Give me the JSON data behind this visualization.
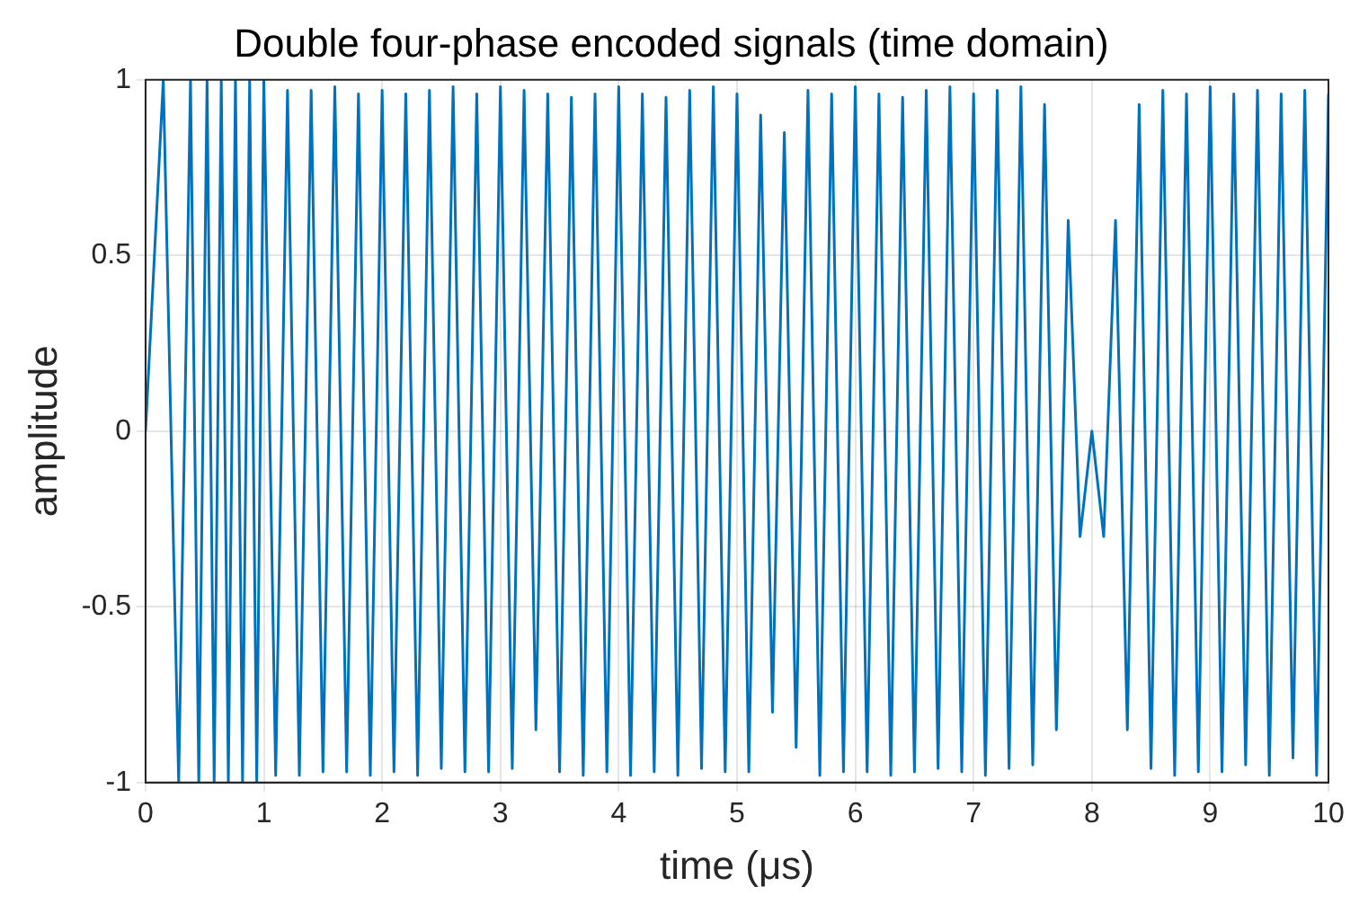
{
  "chart_data": {
    "type": "line",
    "title": "Double four-phase encoded signals (time domain)",
    "xlabel": "time (μs)",
    "ylabel": "amplitude",
    "xlim": [
      0,
      10
    ],
    "xticks": [
      0,
      1,
      2,
      3,
      4,
      5,
      6,
      7,
      8,
      9,
      10
    ],
    "ylim": [
      -1,
      1
    ],
    "yticks": [
      -1,
      -0.5,
      0,
      0.5,
      1
    ],
    "grid": true,
    "marker": "none",
    "line_style": "solid",
    "x": [
      0,
      0.15,
      0.28,
      0.38,
      0.45,
      0.52,
      0.58,
      0.64,
      0.7,
      0.76,
      0.82,
      0.88,
      0.94,
      1.0,
      1.1,
      1.2,
      1.3,
      1.4,
      1.5,
      1.6,
      1.7,
      1.8,
      1.9,
      2.0,
      2.1,
      2.2,
      2.3,
      2.4,
      2.5,
      2.6,
      2.7,
      2.8,
      2.9,
      3.0,
      3.1,
      3.2,
      3.3,
      3.4,
      3.5,
      3.6,
      3.7,
      3.8,
      3.9,
      4.0,
      4.1,
      4.2,
      4.3,
      4.4,
      4.5,
      4.6,
      4.7,
      4.8,
      4.9,
      5.0,
      5.1,
      5.2,
      5.3,
      5.4,
      5.5,
      5.6,
      5.7,
      5.8,
      5.9,
      6.0,
      6.1,
      6.2,
      6.3,
      6.4,
      6.5,
      6.6,
      6.7,
      6.8,
      6.9,
      7.0,
      7.1,
      7.2,
      7.3,
      7.4,
      7.5,
      7.6,
      7.7,
      7.8,
      7.9,
      8.0,
      8.1,
      8.2,
      8.3,
      8.4,
      8.5,
      8.6,
      8.7,
      8.8,
      8.9,
      9.0,
      9.1,
      9.2,
      9.3,
      9.4,
      9.5,
      9.6,
      9.7,
      9.8,
      9.9,
      10.0
    ],
    "series": [
      {
        "color": "#0072bd",
        "values": [
          0,
          1,
          -1,
          1,
          -1,
          1,
          -1,
          1,
          -1,
          1,
          -1,
          1,
          -1,
          1,
          -0.98,
          0.97,
          -0.98,
          0.97,
          -0.97,
          0.98,
          -0.97,
          0.96,
          -0.98,
          0.97,
          -0.97,
          0.96,
          -0.98,
          0.97,
          -0.96,
          0.98,
          -0.97,
          0.96,
          -0.97,
          0.98,
          -0.96,
          0.97,
          -0.85,
          0.96,
          -0.97,
          0.95,
          -0.98,
          0.96,
          -0.97,
          0.98,
          -0.98,
          0.96,
          -0.97,
          0.95,
          -0.98,
          0.97,
          -0.96,
          0.98,
          -0.97,
          0.96,
          -0.97,
          0.9,
          -0.8,
          0.85,
          -0.9,
          0.97,
          -0.98,
          0.96,
          -0.97,
          0.98,
          -0.97,
          0.96,
          -0.98,
          0.95,
          -0.97,
          0.97,
          -0.96,
          0.98,
          -0.97,
          0.96,
          -0.98,
          0.97,
          -0.96,
          0.98,
          -0.95,
          0.93,
          -0.85,
          0.6,
          -0.3,
          0,
          -0.3,
          0.6,
          -0.85,
          0.93,
          -0.96,
          0.97,
          -0.98,
          0.96,
          -0.97,
          0.98,
          -0.97,
          0.96,
          -0.95,
          0.97,
          -0.98,
          0.96,
          -0.93,
          0.97,
          -0.98,
          0.96
        ]
      }
    ]
  }
}
